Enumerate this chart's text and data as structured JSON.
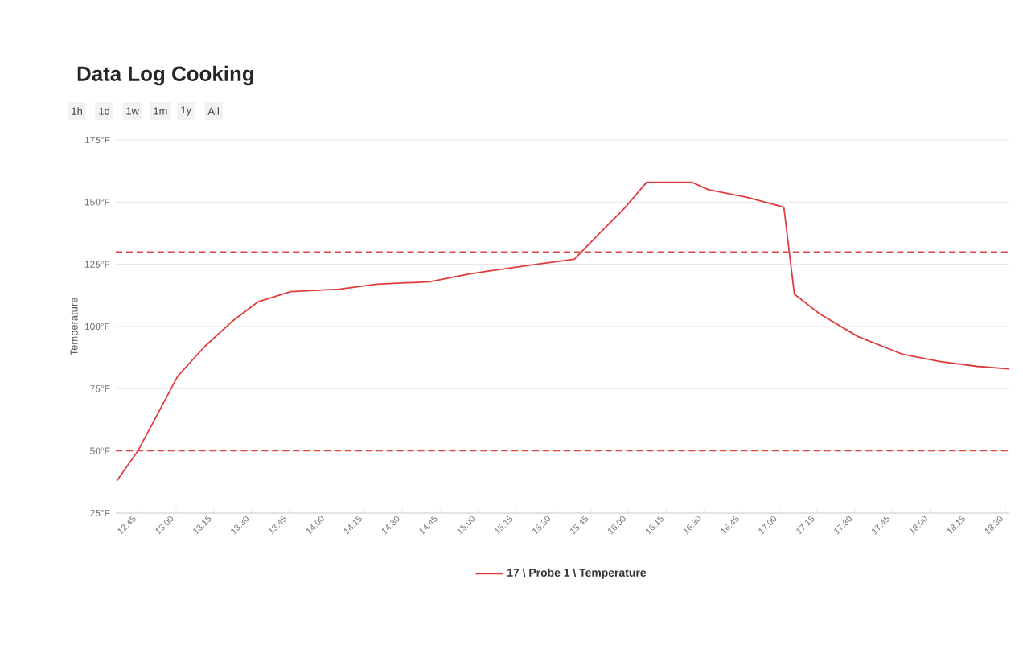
{
  "chart_data": {
    "type": "line",
    "title": "Data Log Cooking",
    "ylabel": "Temperature",
    "annotations": [
      "1h",
      "1d",
      "1w",
      "1m",
      "1y",
      "All"
    ],
    "x": [
      12.607,
      12.746,
      12.87,
      13.01,
      13.19,
      13.37,
      13.545,
      13.76,
      14.08,
      14.33,
      14.68,
      14.93,
      15.04,
      15.39,
      15.64,
      15.8,
      15.98,
      16.12,
      16.42,
      16.53,
      16.78,
      17.03,
      17.1,
      17.27,
      17.52,
      17.81,
      18.06,
      18.31,
      18.52
    ],
    "series": [
      {
        "name": "17 \\ Probe 1 \\ Temperature",
        "color": "#e03c3c",
        "values": [
          38,
          50,
          64,
          80,
          92,
          102,
          110,
          114,
          115,
          117,
          118,
          121,
          122,
          125,
          127,
          137,
          148,
          158,
          158,
          155,
          152,
          148,
          113,
          105,
          96,
          89,
          86,
          84,
          83
        ]
      }
    ],
    "xlim": [
      12.6,
      18.52
    ],
    "xticks": [
      {
        "value": 12.75,
        "label": "12:45"
      },
      {
        "value": 13.0,
        "label": "13:00"
      },
      {
        "value": 13.25,
        "label": "13:15"
      },
      {
        "value": 13.5,
        "label": "13:30"
      },
      {
        "value": 13.75,
        "label": "13:45"
      },
      {
        "value": 14.0,
        "label": "14:00"
      },
      {
        "value": 14.25,
        "label": "14:15"
      },
      {
        "value": 14.5,
        "label": "14:30"
      },
      {
        "value": 14.75,
        "label": "14:45"
      },
      {
        "value": 15.0,
        "label": "15:00"
      },
      {
        "value": 15.25,
        "label": "15:15"
      },
      {
        "value": 15.5,
        "label": "15:30"
      },
      {
        "value": 15.75,
        "label": "15:45"
      },
      {
        "value": 16.0,
        "label": "16:00"
      },
      {
        "value": 16.25,
        "label": "16:15"
      },
      {
        "value": 16.5,
        "label": "16:30"
      },
      {
        "value": 16.75,
        "label": "16:45"
      },
      {
        "value": 17.0,
        "label": "17:00"
      },
      {
        "value": 17.25,
        "label": "17:15"
      },
      {
        "value": 17.5,
        "label": "17:30"
      },
      {
        "value": 17.75,
        "label": "17:45"
      },
      {
        "value": 18.0,
        "label": "18:00"
      },
      {
        "value": 18.25,
        "label": "18:15"
      },
      {
        "value": 18.5,
        "label": "18:30"
      }
    ],
    "ylim": [
      25,
      175
    ],
    "yticks": [
      {
        "value": 25,
        "label": "25°F"
      },
      {
        "value": 50,
        "label": "50°F"
      },
      {
        "value": 75,
        "label": "75°F"
      },
      {
        "value": 100,
        "label": "100°F"
      },
      {
        "value": 125,
        "label": "125°F"
      },
      {
        "value": 150,
        "label": "150°F"
      },
      {
        "value": 175,
        "label": "175°F"
      }
    ],
    "ref_lines": [
      {
        "axis": "y",
        "value": 130,
        "color": "#d94848",
        "line_style": "dashed"
      },
      {
        "axis": "y",
        "value": 50,
        "color": "#d94848",
        "line_style": "dashed"
      }
    ],
    "grid": "y",
    "legend": "bottom",
    "marker": "none",
    "line_style": "solid"
  }
}
